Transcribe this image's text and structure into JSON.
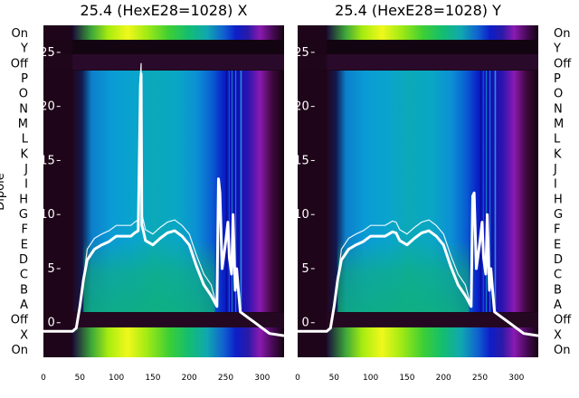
{
  "chart_data": [
    {
      "type": "heatmap",
      "title": "25.4 (HexE28=1028) X",
      "ylabel": "Dipole",
      "row_labels": [
        "On",
        "Y",
        "Off",
        "P",
        "O",
        "N",
        "M",
        "L",
        "K",
        "J",
        "I",
        "H",
        "G",
        "F",
        "E",
        "D",
        "C",
        "B",
        "A",
        "Off",
        "X",
        "On"
      ],
      "x_ticks": [
        0,
        50,
        100,
        150,
        200,
        250,
        300
      ],
      "xlim": [
        0,
        330
      ],
      "y_ticks": [
        0,
        5,
        10,
        15,
        20,
        25
      ],
      "ylim": [
        -3.2,
        27.5
      ],
      "overlay_trace": {
        "x": [
          0,
          40,
          45,
          50,
          55,
          60,
          70,
          80,
          90,
          100,
          110,
          120,
          125,
          130,
          133,
          134,
          135,
          137,
          140,
          150,
          160,
          170,
          180,
          190,
          200,
          210,
          220,
          230,
          238,
          240,
          242,
          245,
          250,
          253,
          255,
          258,
          260,
          263,
          265,
          268,
          270,
          280,
          290,
          300,
          310,
          330
        ],
        "y": [
          -0.8,
          -0.8,
          -0.5,
          1.5,
          4,
          5.8,
          6.8,
          7.2,
          7.5,
          8,
          8,
          8,
          8.3,
          8.5,
          22,
          23,
          9,
          8.5,
          7.6,
          7.2,
          7.8,
          8.3,
          8.5,
          8,
          7.2,
          5.2,
          3.5,
          2.5,
          1.5,
          13.3,
          12,
          5,
          7.5,
          9.3,
          6,
          4.5,
          10,
          3,
          5,
          2.5,
          1,
          0.5,
          0,
          -0.5,
          -1,
          -1.2
        ]
      }
    },
    {
      "type": "heatmap",
      "title": "25.4 (HexE28=1028) Y",
      "row_labels": [
        "On",
        "Y",
        "Off",
        "P",
        "O",
        "N",
        "M",
        "L",
        "K",
        "J",
        "I",
        "H",
        "G",
        "F",
        "E",
        "D",
        "C",
        "B",
        "A",
        "Off",
        "X",
        "On"
      ],
      "x_ticks": [
        0,
        50,
        100,
        150,
        200,
        250,
        300
      ],
      "xlim": [
        0,
        330
      ],
      "y_ticks": [
        0,
        5,
        10,
        15,
        20,
        25
      ],
      "ylim": [
        -3.2,
        27.5
      ],
      "overlay_trace": {
        "x": [
          0,
          40,
          45,
          50,
          55,
          60,
          70,
          80,
          90,
          100,
          110,
          120,
          125,
          130,
          135,
          140,
          150,
          160,
          170,
          180,
          190,
          200,
          210,
          220,
          230,
          238,
          240,
          242,
          245,
          250,
          253,
          255,
          258,
          260,
          263,
          265,
          268,
          270,
          280,
          290,
          300,
          310,
          330
        ],
        "y": [
          -0.8,
          -0.8,
          -0.5,
          1.5,
          4,
          5.8,
          6.8,
          7.2,
          7.5,
          8,
          8,
          8,
          8.2,
          8.4,
          8.3,
          7.6,
          7.2,
          7.8,
          8.3,
          8.5,
          8,
          7.2,
          5.2,
          3.5,
          2.5,
          1.5,
          11.7,
          12,
          5,
          7.5,
          9.3,
          6,
          4.5,
          10,
          3,
          5,
          2.5,
          1,
          0.5,
          0,
          -0.5,
          -1,
          -1.2
        ]
      }
    }
  ],
  "colors": {
    "trace": "#ffffff",
    "cyan_blue": "#0a9ad8",
    "teal_green": "#13b07d",
    "lime": "#7fe60a",
    "yellow": "#e9f21c",
    "deep_blue": "#0a14c8",
    "purple": "#7a1aa8",
    "dark_bg": "#1a0618"
  }
}
